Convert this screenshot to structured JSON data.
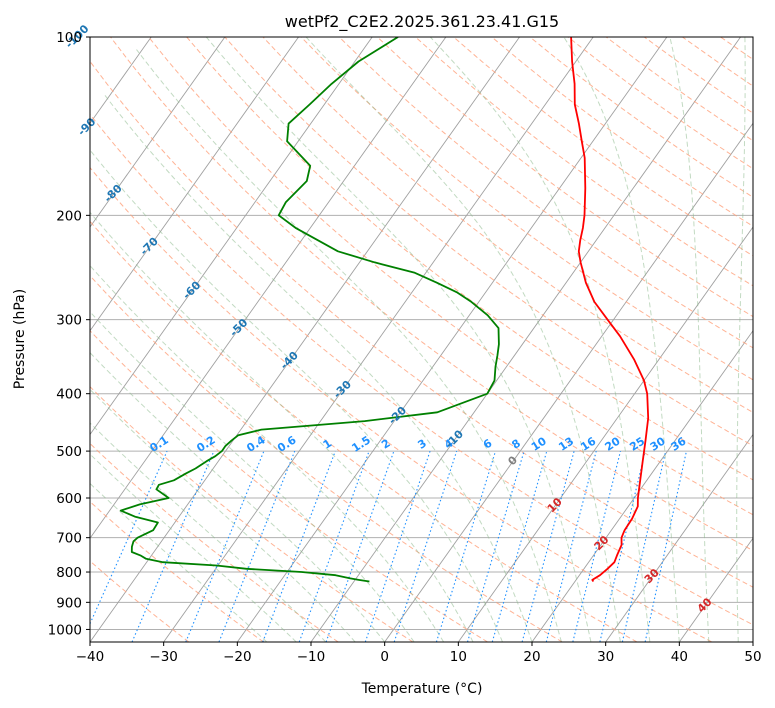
{
  "chart_data": {
    "type": "skew-t log-p",
    "title": "wetPf2_C2E2.2025.361.23.41.G15",
    "xlabel": "Temperature (°C)",
    "ylabel": "Pressure (hPa)",
    "xlim": [
      -40,
      50
    ],
    "ylim": [
      1050,
      100
    ],
    "x_ticks": [
      -40,
      -30,
      -20,
      -10,
      0,
      10,
      20,
      30,
      40,
      50
    ],
    "y_ticks": [
      100,
      200,
      300,
      400,
      500,
      600,
      700,
      800,
      900,
      1000
    ],
    "grid": true,
    "y_scale": "log",
    "temperature_profile": {
      "color": "#ff0000",
      "pressure": [
        830,
        825,
        810,
        790,
        770,
        750,
        720,
        700,
        680,
        650,
        620,
        600,
        560,
        520,
        480,
        440,
        400,
        380,
        350,
        320,
        300,
        280,
        260,
        240,
        230,
        220,
        210,
        200,
        180,
        160,
        150,
        140,
        130,
        120,
        110,
        100
      ],
      "temperature": [
        22.5,
        22.2,
        22.8,
        23.2,
        23.5,
        23.2,
        22.8,
        22.1,
        21.8,
        21.7,
        21.3,
        20.5,
        19.1,
        17.6,
        16.0,
        14.2,
        11.7,
        10.0,
        6.6,
        2.5,
        -0.8,
        -4.3,
        -7.3,
        -10.0,
        -11.3,
        -12.2,
        -13.0,
        -14.0,
        -16.5,
        -19.5,
        -21.5,
        -23.6,
        -26.0,
        -28.0,
        -30.5,
        -33.0
      ]
    },
    "dewpoint_profile": {
      "color": "#008000",
      "pressure": [
        830,
        825,
        820,
        810,
        800,
        790,
        780,
        770,
        760,
        750,
        740,
        725,
        710,
        700,
        680,
        660,
        645,
        630,
        615,
        600,
        580,
        570,
        560,
        545,
        535,
        520,
        510,
        500,
        490,
        480,
        470,
        460,
        445,
        430,
        400,
        380,
        360,
        345,
        330,
        310,
        295,
        280,
        270,
        260,
        250,
        240,
        230,
        210,
        200,
        190,
        175,
        165,
        150,
        140,
        130,
        120,
        110,
        100
      ],
      "temperature": [
        -7.9,
        -9.5,
        -10.8,
        -13.1,
        -18.0,
        -25.8,
        -30.2,
        -37.8,
        -40.4,
        -41.5,
        -43.0,
        -43.5,
        -43.8,
        -43.6,
        -42.2,
        -42.3,
        -46.0,
        -48.5,
        -46.5,
        -43.2,
        -45.7,
        -45.8,
        -44.2,
        -43.2,
        -42.4,
        -41.6,
        -40.9,
        -40.5,
        -40.5,
        -40.2,
        -39.8,
        -37.2,
        -24.0,
        -15.0,
        -10.0,
        -10.3,
        -11.5,
        -12.3,
        -13.2,
        -14.8,
        -17.5,
        -21.0,
        -23.8,
        -27.5,
        -31.5,
        -38.0,
        -44.0,
        -52.0,
        -55.5,
        -55.8,
        -55.0,
        -56.0,
        -61.5,
        -63.0,
        -62.0,
        -61.0,
        -59.5,
        -56.5
      ]
    },
    "isotherm_labels": [
      "-100",
      "-90",
      "-80",
      "-70",
      "-60",
      "-50",
      "-40",
      "-30",
      "-20",
      "-10",
      "0",
      "10",
      "20",
      "30",
      "40"
    ],
    "isotherm_label_colors": {
      "cold": "#1f77b4",
      "zero": "#808080",
      "warm": "#d62728"
    },
    "mixing_ratio_labels": [
      "0.1",
      "0.2",
      "0.4",
      "0.6",
      "1",
      "1.5",
      "2",
      "3",
      "4",
      "6",
      "8",
      "10",
      "13",
      "16",
      "20",
      "25",
      "30",
      "36"
    ],
    "mixing_ratio_color": "#1e90ff",
    "dry_adiabat_color": "#ffa07a",
    "moist_adiabat_color": "#8fbc8f"
  }
}
